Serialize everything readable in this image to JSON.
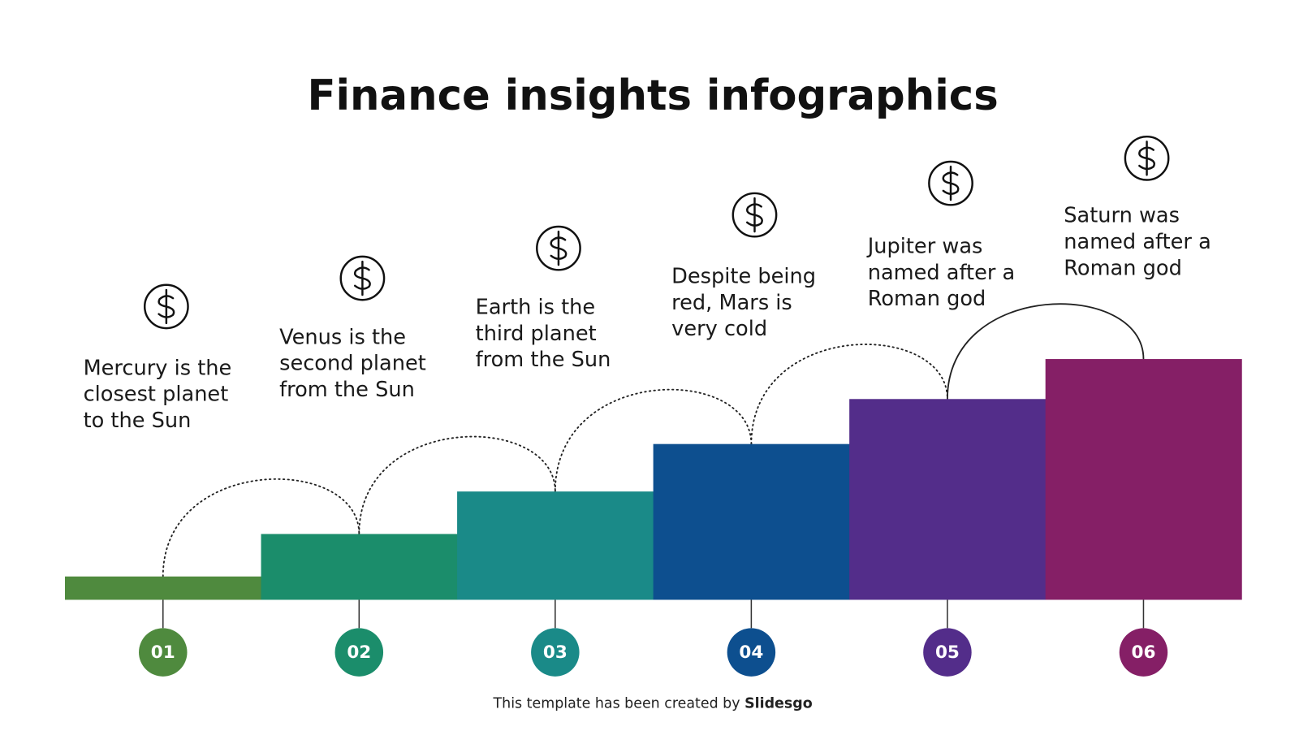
{
  "title": "Finance insights infographics",
  "steps": [
    {
      "number": "01",
      "color": "#4f8a3e",
      "lines": [
        "Mercury is the",
        "closest planet",
        "to the Sun"
      ]
    },
    {
      "number": "02",
      "color": "#1b8d6b",
      "lines": [
        "Venus is the",
        "second planet",
        "from the Sun"
      ]
    },
    {
      "number": "03",
      "color": "#1a8a88",
      "lines": [
        "Earth is the",
        "third planet",
        "from the Sun"
      ]
    },
    {
      "number": "04",
      "color": "#0d4f8f",
      "lines": [
        "Despite being",
        "red, Mars is",
        "very cold"
      ]
    },
    {
      "number": "05",
      "color": "#532d8a",
      "lines": [
        "Jupiter was",
        "named after a",
        "Roman god"
      ]
    },
    {
      "number": "06",
      "color": "#851f66",
      "lines": [
        "Saturn was",
        "named after a",
        "Roman god"
      ]
    }
  ],
  "footer": {
    "text": "This template has been created by",
    "brand": "Slidesgo"
  }
}
